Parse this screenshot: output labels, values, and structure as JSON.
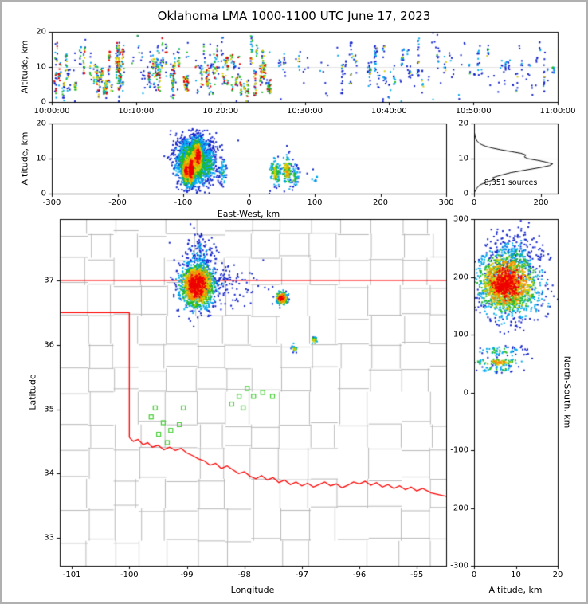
{
  "title": "Oklahoma LMA 1000-1100 UTC June 17, 2023",
  "colors": {
    "background": "#ffffff",
    "frame": "#000000",
    "grid": "#e3e3e3",
    "outer_border": "#b0b0b0",
    "state_border": "#ff0000",
    "county_lines": "#b8b8b8",
    "stations": "#44cc33",
    "histogram_line": "#000000",
    "point_colormap": [
      "#1122cc",
      "#00aaee",
      "#22bb22",
      "#ddcc00",
      "#ff8800",
      "#ee0000"
    ]
  },
  "chart_data": [
    {
      "name": "time-height",
      "type": "scatter",
      "xlabel": "",
      "ylabel": "Altitude, km",
      "xlim": [
        0,
        60
      ],
      "ylim": [
        0,
        20
      ],
      "grid_y": [
        10
      ],
      "xticks": [
        {
          "v": 0,
          "label": "10:00:00"
        },
        {
          "v": 10,
          "label": "10:10:00"
        },
        {
          "v": 20,
          "label": "10:20:00"
        },
        {
          "v": 30,
          "label": "10:30:00"
        },
        {
          "v": 40,
          "label": "10:40:00"
        },
        {
          "v": 50,
          "label": "10:50:00"
        },
        {
          "v": 60,
          "label": "11:00:00"
        }
      ],
      "yticks": [
        {
          "v": 0,
          "label": "0"
        },
        {
          "v": 10,
          "label": "10"
        },
        {
          "v": 20,
          "label": "20"
        }
      ],
      "streak_regions": [
        {
          "t0": 0.2,
          "t1": 26,
          "streaks": 80,
          "alt_lo": 3,
          "alt_hi": 15,
          "pts_min": 3,
          "pts_max": 22,
          "hot": 0.85
        },
        {
          "t0": 0.2,
          "t1": 26,
          "streaks": 40,
          "alt_lo": 1,
          "alt_hi": 17,
          "pts_min": 1,
          "pts_max": 6,
          "hot": 0.3
        },
        {
          "t0": 26,
          "t1": 59.8,
          "streaks": 45,
          "alt_lo": 5,
          "alt_hi": 16,
          "pts_min": 2,
          "pts_max": 10,
          "hot": 0.35
        },
        {
          "t0": 26,
          "t1": 59.8,
          "streaks": 30,
          "alt_lo": 2,
          "alt_hi": 14,
          "pts_min": 1,
          "pts_max": 3,
          "hot": 0.15
        },
        {
          "t0": 0.2,
          "t1": 59.8,
          "streaks": 60,
          "alt_lo": 1,
          "alt_hi": 18,
          "pts_min": 1,
          "pts_max": 2,
          "hot": 0.12
        }
      ]
    },
    {
      "name": "eastwest-height",
      "type": "scatter",
      "xlabel": "East-West, km",
      "ylabel": "Altitude, km",
      "xlim": [
        -300,
        300
      ],
      "ylim": [
        0,
        20
      ],
      "grid_y": [
        10
      ],
      "xticks": [
        {
          "v": -300,
          "label": "-300"
        },
        {
          "v": -200,
          "label": "-200"
        },
        {
          "v": -100,
          "label": "-100"
        },
        {
          "v": 0,
          "label": "0"
        },
        {
          "v": 100,
          "label": "100"
        },
        {
          "v": 200,
          "label": "200"
        },
        {
          "v": 300,
          "label": "300"
        }
      ],
      "yticks": [
        {
          "v": 0,
          "label": "0"
        },
        {
          "v": 10,
          "label": "10"
        },
        {
          "v": 20,
          "label": "20"
        }
      ],
      "clusters": [
        {
          "cx": -85,
          "cy": 9,
          "sx": 13,
          "sy": 3.2,
          "n": 1500,
          "hot": 0.55
        },
        {
          "cx": -88,
          "cy": 7,
          "sx": 3,
          "sy": 2.2,
          "n": 600,
          "hot": 1.0
        },
        {
          "cx": -78,
          "cy": 10.5,
          "sx": 4,
          "sy": 2.4,
          "n": 450,
          "hot": 0.9
        },
        {
          "cx": -96,
          "cy": 6.5,
          "sx": 3,
          "sy": 2.2,
          "n": 300,
          "hot": 0.85
        },
        {
          "cx": -82,
          "cy": 13.5,
          "sx": 16,
          "sy": 2.2,
          "n": 250,
          "hot": 0.2
        },
        {
          "cx": -60,
          "cy": 8,
          "sx": 6,
          "sy": 2.6,
          "n": 180,
          "hot": 0.35
        },
        {
          "cx": -40,
          "cy": 6.5,
          "sx": 3,
          "sy": 2,
          "n": 60,
          "hot": 0.3
        },
        {
          "cx": 40,
          "cy": 6,
          "sx": 4,
          "sy": 2.2,
          "n": 110,
          "hot": 0.55
        },
        {
          "cx": 58,
          "cy": 6.5,
          "sx": 4,
          "sy": 2.4,
          "n": 130,
          "hot": 0.6
        },
        {
          "cx": 70,
          "cy": 5,
          "sx": 3,
          "sy": 1.8,
          "n": 50,
          "hot": 0.4
        },
        {
          "cx": 100,
          "cy": 4,
          "sx": 5,
          "sy": 1.5,
          "n": 10,
          "hot": 0.25
        }
      ]
    },
    {
      "name": "altitude-histogram",
      "type": "line",
      "xlabel": "",
      "ylabel": "",
      "annotation": "8,351 sources",
      "xlim": [
        0,
        250
      ],
      "ylim": [
        0,
        20
      ],
      "grid_y": [
        10
      ],
      "xticks": [
        {
          "v": 0,
          "label": "0"
        },
        {
          "v": 200,
          "label": "200"
        }
      ],
      "yticks": [
        {
          "v": 0,
          "label": "0"
        },
        {
          "v": 10,
          "label": "10"
        },
        {
          "v": 20,
          "label": "20"
        }
      ],
      "profile": {
        "alt_step": 0.5,
        "counts": [
          0,
          2,
          5,
          8,
          12,
          18,
          30,
          45,
          60,
          55,
          70,
          90,
          110,
          140,
          170,
          200,
          225,
          235,
          215,
          190,
          160,
          150,
          155,
          140,
          110,
          80,
          55,
          35,
          22,
          14,
          9,
          6,
          4,
          3,
          2,
          1,
          1,
          0,
          0,
          0,
          0
        ]
      }
    },
    {
      "name": "plan-view-map",
      "type": "map",
      "xlabel": "Longitude",
      "ylabel": "Latitude",
      "xlim": [
        -101.21,
        -94.49
      ],
      "ylim": [
        32.57,
        37.95
      ],
      "xticks": [
        {
          "v": -101,
          "label": "-101"
        },
        {
          "v": -100,
          "label": "-100"
        },
        {
          "v": -99,
          "label": "-99"
        },
        {
          "v": -98,
          "label": "-98"
        },
        {
          "v": -97,
          "label": "-97"
        },
        {
          "v": -96,
          "label": "-96"
        },
        {
          "v": -95,
          "label": "-95"
        }
      ],
      "yticks": [
        {
          "v": 33,
          "label": "33"
        },
        {
          "v": 34,
          "label": "34"
        },
        {
          "v": 35,
          "label": "35"
        },
        {
          "v": 36,
          "label": "36"
        },
        {
          "v": 37,
          "label": "37"
        }
      ],
      "borders": [
        [
          [
            -101.25,
            37
          ],
          [
            -94.45,
            37
          ]
        ],
        [
          [
            -101.25,
            36.5
          ],
          [
            -100,
            36.5
          ]
        ],
        [
          [
            -100,
            36.5
          ],
          [
            -100,
            34.56
          ]
        ],
        [
          [
            -100.0,
            34.56
          ],
          [
            -99.93,
            34.5
          ],
          [
            -99.85,
            34.53
          ],
          [
            -99.76,
            34.45
          ],
          [
            -99.68,
            34.48
          ],
          [
            -99.6,
            34.41
          ],
          [
            -99.5,
            34.44
          ],
          [
            -99.4,
            34.37
          ],
          [
            -99.3,
            34.41
          ],
          [
            -99.2,
            34.36
          ],
          [
            -99.1,
            34.39
          ],
          [
            -99.0,
            34.32
          ],
          [
            -98.9,
            34.28
          ],
          [
            -98.8,
            34.23
          ],
          [
            -98.7,
            34.2
          ],
          [
            -98.6,
            34.13
          ],
          [
            -98.5,
            34.16
          ],
          [
            -98.4,
            34.08
          ],
          [
            -98.3,
            34.12
          ],
          [
            -98.2,
            34.06
          ],
          [
            -98.1,
            34.0
          ],
          [
            -98.0,
            34.03
          ],
          [
            -97.9,
            33.96
          ],
          [
            -97.8,
            33.92
          ],
          [
            -97.7,
            33.97
          ],
          [
            -97.6,
            33.9
          ],
          [
            -97.5,
            33.94
          ],
          [
            -97.4,
            33.86
          ],
          [
            -97.3,
            33.9
          ],
          [
            -97.2,
            33.83
          ],
          [
            -97.1,
            33.87
          ],
          [
            -97.0,
            33.81
          ],
          [
            -96.9,
            33.85
          ],
          [
            -96.8,
            33.79
          ],
          [
            -96.7,
            33.83
          ],
          [
            -96.6,
            33.87
          ],
          [
            -96.5,
            33.81
          ],
          [
            -96.4,
            33.84
          ],
          [
            -96.3,
            33.78
          ],
          [
            -96.2,
            33.82
          ],
          [
            -96.1,
            33.87
          ],
          [
            -96.0,
            33.84
          ],
          [
            -95.9,
            33.88
          ],
          [
            -95.8,
            33.82
          ],
          [
            -95.7,
            33.86
          ],
          [
            -95.6,
            33.79
          ],
          [
            -95.5,
            33.83
          ],
          [
            -95.4,
            33.77
          ],
          [
            -95.3,
            33.81
          ],
          [
            -95.2,
            33.75
          ],
          [
            -95.1,
            33.79
          ],
          [
            -95.0,
            33.73
          ],
          [
            -94.9,
            33.77
          ],
          [
            -94.75,
            33.7
          ],
          [
            -94.45,
            33.64
          ]
        ]
      ],
      "stations": [
        [
          -99.55,
          35.02
        ],
        [
          -99.41,
          34.79
        ],
        [
          -99.49,
          34.61
        ],
        [
          -99.28,
          34.67
        ],
        [
          -99.34,
          34.48
        ],
        [
          -99.13,
          34.76
        ],
        [
          -99.06,
          35.02
        ],
        [
          -99.62,
          34.88
        ],
        [
          -98.09,
          35.2
        ],
        [
          -97.95,
          35.32
        ],
        [
          -97.84,
          35.2
        ],
        [
          -98.02,
          35.02
        ],
        [
          -97.68,
          35.26
        ],
        [
          -97.51,
          35.2
        ],
        [
          -98.22,
          35.08
        ]
      ],
      "clusters": [
        {
          "cx": -98.82,
          "cy": 36.92,
          "sx": 0.14,
          "sy": 0.17,
          "n": 1400,
          "hot": 0.95
        },
        {
          "cx": -98.9,
          "cy": 36.95,
          "sx": 0.05,
          "sy": 0.07,
          "n": 350,
          "hot": 1.0
        },
        {
          "cx": -98.78,
          "cy": 37.3,
          "sx": 0.15,
          "sy": 0.22,
          "n": 220,
          "hot": 0.2
        },
        {
          "cx": -98.35,
          "cy": 36.95,
          "sx": 0.3,
          "sy": 0.18,
          "n": 130,
          "hot": 0.12
        },
        {
          "cx": -97.35,
          "cy": 36.72,
          "sx": 0.05,
          "sy": 0.05,
          "n": 200,
          "hot": 0.9
        },
        {
          "cx": -97.12,
          "cy": 35.95,
          "sx": 0.03,
          "sy": 0.03,
          "n": 22,
          "hot": 0.55
        },
        {
          "cx": -96.78,
          "cy": 36.07,
          "sx": 0.03,
          "sy": 0.03,
          "n": 22,
          "hot": 0.55
        }
      ]
    },
    {
      "name": "northsouth-height",
      "type": "scatter",
      "xlabel": "Altitude, km",
      "ylabel": "North-South, km",
      "xlim": [
        0,
        20
      ],
      "ylim": [
        -300,
        300
      ],
      "xticks": [
        {
          "v": 0,
          "label": "0"
        },
        {
          "v": 10,
          "label": "10"
        },
        {
          "v": 20,
          "label": "20"
        }
      ],
      "yticks": [
        {
          "v": 300,
          "label": "300"
        },
        {
          "v": 200,
          "label": "200"
        },
        {
          "v": 100,
          "label": "100"
        },
        {
          "v": 0,
          "label": "0"
        },
        {
          "v": -100,
          "label": "-100"
        },
        {
          "v": -200,
          "label": "-200"
        },
        {
          "v": -300,
          "label": "-300"
        }
      ],
      "clusters": [
        {
          "cx": 8,
          "cy": 190,
          "sx": 3.4,
          "sy": 26,
          "n": 1500,
          "hot": 0.95
        },
        {
          "cx": 7,
          "cy": 185,
          "sx": 2,
          "sy": 10,
          "n": 450,
          "hot": 1.0
        },
        {
          "cx": 9,
          "cy": 235,
          "sx": 3,
          "sy": 22,
          "n": 250,
          "hot": 0.2
        },
        {
          "cx": 10,
          "cy": 160,
          "sx": 4,
          "sy": 15,
          "n": 200,
          "hot": 0.4
        },
        {
          "cx": 6.5,
          "cy": 72,
          "sx": 2.6,
          "sy": 5,
          "n": 70,
          "hot": 0.35
        },
        {
          "cx": 6,
          "cy": 52,
          "sx": 3,
          "sy": 3,
          "n": 90,
          "hot": 0.7
        },
        {
          "cx": 5.5,
          "cy": 40,
          "sx": 2.5,
          "sy": 3,
          "n": 40,
          "hot": 0.4
        },
        {
          "cx": 7,
          "cy": 120,
          "sx": 3,
          "sy": 12,
          "n": 25,
          "hot": 0.15
        }
      ]
    }
  ]
}
